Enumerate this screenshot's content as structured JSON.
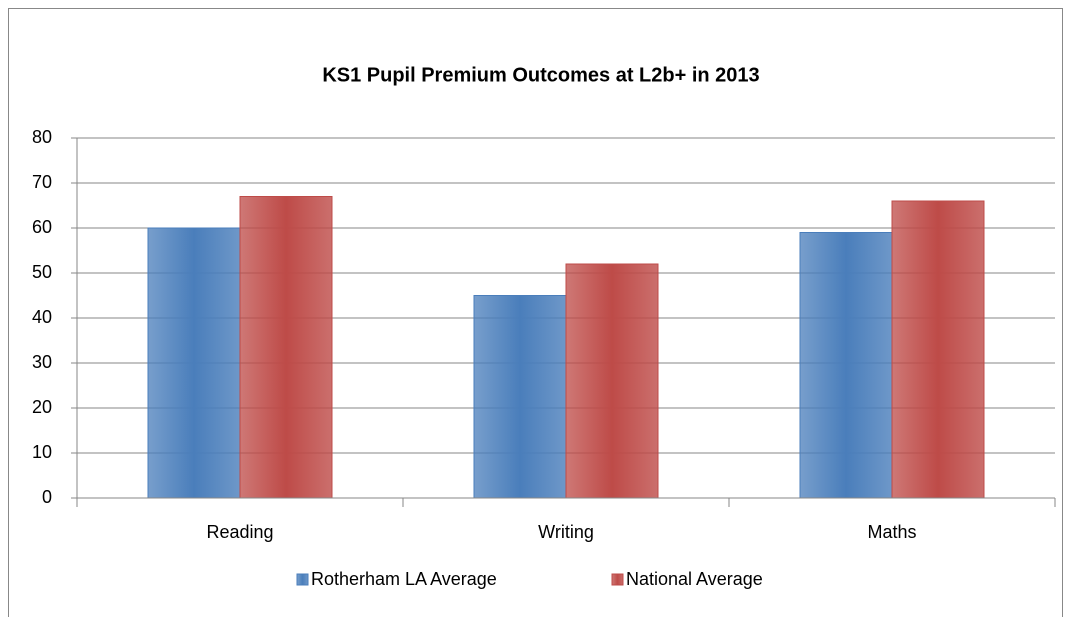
{
  "chart_data": {
    "type": "bar",
    "title": "KS1 Pupil Premium Outcomes at L2b+ in 2013",
    "categories": [
      "Reading",
      "Writing",
      "Maths"
    ],
    "series": [
      {
        "name": "Rotherham LA Average",
        "color": "#4a7ebb",
        "values": [
          60,
          45,
          59
        ]
      },
      {
        "name": "National Average",
        "color": "#be4b48",
        "values": [
          67,
          52,
          66
        ]
      }
    ],
    "ylim": [
      0,
      80
    ],
    "yticks": [
      0,
      10,
      20,
      30,
      40,
      50,
      60,
      70,
      80
    ],
    "grid": true,
    "legend": "bottom"
  }
}
